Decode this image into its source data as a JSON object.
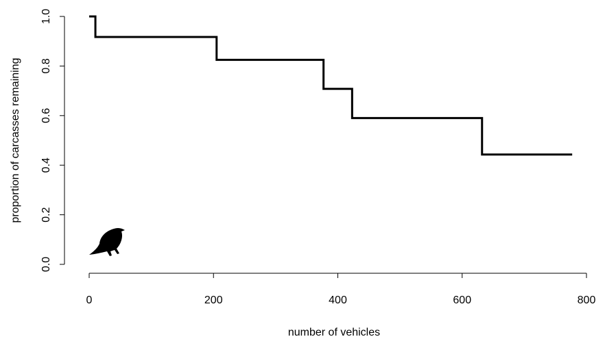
{
  "chart_data": {
    "type": "line",
    "step": true,
    "title": "",
    "xlabel": "number of vehicles",
    "ylabel": "proportion of carcasses remaining",
    "xlim": [
      0,
      800
    ],
    "ylim": [
      0.0,
      1.0
    ],
    "grid": false,
    "x_ticks": [
      0,
      200,
      400,
      600,
      800
    ],
    "x_tick_labels": [
      "0",
      "200",
      "400",
      "600",
      "800"
    ],
    "y_ticks": [
      0.0,
      0.2,
      0.4,
      0.6,
      0.8,
      1.0
    ],
    "y_tick_labels": [
      "0.0",
      "0.2",
      "0.4",
      "0.6",
      "0.8",
      "1.0"
    ],
    "series": [
      {
        "color": "#000000",
        "x": [
          0,
          10,
          205,
          377,
          423,
          632,
          777
        ],
        "y": [
          1.0,
          0.917,
          0.825,
          0.708,
          0.59,
          0.443,
          0.443
        ]
      }
    ],
    "annotation_icon": "bird-silhouette-icon"
  }
}
